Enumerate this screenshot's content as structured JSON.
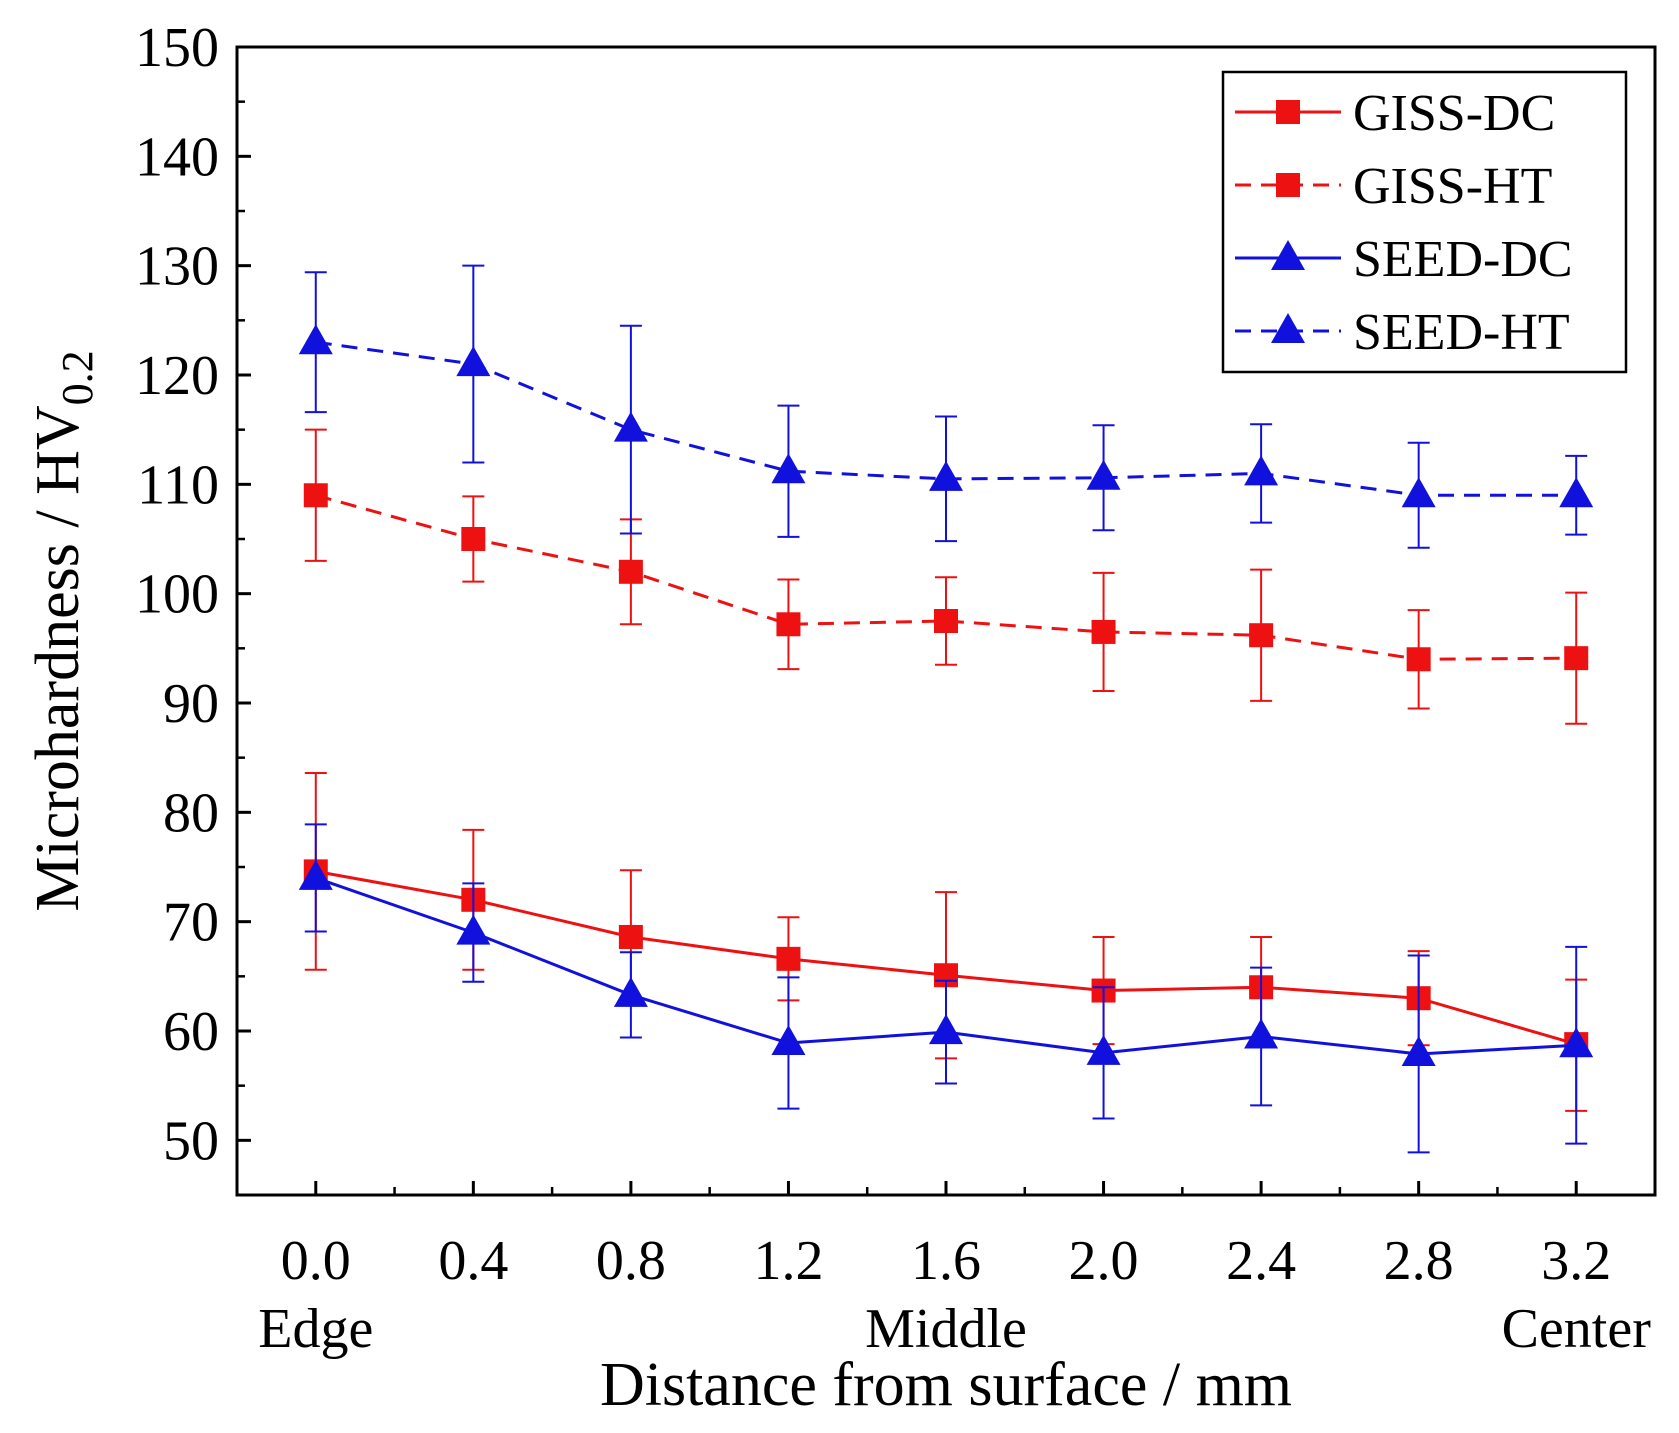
{
  "chart_data": {
    "type": "line",
    "title": "",
    "xlabel": "Distance from surface / mm",
    "ylabel": "Microhardness / HV",
    "ylabel_subscript": "0.2",
    "x": [
      0.0,
      0.4,
      0.8,
      1.2,
      1.6,
      2.0,
      2.4,
      2.8,
      3.2
    ],
    "x_tick_labels": [
      "0.0",
      "0.4",
      "0.8",
      "1.2",
      "1.6",
      "2.0",
      "2.4",
      "2.8",
      "3.2"
    ],
    "x_region_labels": [
      {
        "at": 0.0,
        "text": "Edge"
      },
      {
        "at": 1.6,
        "text": "Middle"
      },
      {
        "at": 3.2,
        "text": "Center"
      }
    ],
    "xlim": [
      -0.2,
      3.4
    ],
    "ylim": [
      45,
      150
    ],
    "y_ticks": [
      50,
      60,
      70,
      80,
      90,
      100,
      110,
      120,
      130,
      140,
      150
    ],
    "legend_position": "top-right",
    "series": [
      {
        "name": "GISS-DC",
        "color": "#ee1111",
        "dash": "solid",
        "marker": "square",
        "values": [
          74.6,
          72.0,
          68.6,
          66.6,
          65.1,
          63.7,
          64.0,
          63.0,
          58.8
        ],
        "err_plus": [
          9.0,
          6.4,
          6.1,
          3.8,
          7.6,
          4.9,
          4.6,
          4.3,
          5.9
        ],
        "err_minus": [
          9.0,
          6.4,
          6.1,
          3.8,
          7.6,
          4.9,
          4.6,
          4.3,
          6.1
        ]
      },
      {
        "name": "GISS-HT",
        "color": "#ee1111",
        "dash": "dashed",
        "marker": "square",
        "values": [
          109.0,
          105.0,
          102.0,
          97.2,
          97.5,
          96.5,
          96.2,
          94.0,
          94.1
        ],
        "err_plus": [
          6.0,
          3.9,
          4.8,
          4.1,
          4.0,
          5.4,
          6.0,
          4.5,
          6.0
        ],
        "err_minus": [
          6.0,
          3.9,
          4.8,
          4.1,
          4.0,
          5.4,
          6.0,
          4.5,
          6.0
        ]
      },
      {
        "name": "SEED-DC",
        "color": "#1111dd",
        "dash": "solid",
        "marker": "triangle",
        "values": [
          74.0,
          69.0,
          63.3,
          58.9,
          59.9,
          58.0,
          59.5,
          57.9,
          58.7
        ],
        "err_plus": [
          4.9,
          4.5,
          3.9,
          6.0,
          4.7,
          6.0,
          6.3,
          9.0,
          9.0
        ],
        "err_minus": [
          4.9,
          4.5,
          3.9,
          6.0,
          4.7,
          6.0,
          6.3,
          9.0,
          9.0
        ]
      },
      {
        "name": "SEED-HT",
        "color": "#1111dd",
        "dash": "dashed",
        "marker": "triangle",
        "values": [
          123.0,
          121.0,
          115.0,
          111.2,
          110.5,
          110.6,
          111.0,
          109.0,
          109.0
        ],
        "err_plus": [
          6.4,
          9.0,
          9.5,
          6.0,
          5.7,
          4.8,
          4.5,
          4.8,
          3.6
        ],
        "err_minus": [
          6.4,
          9.0,
          9.5,
          6.0,
          5.7,
          4.8,
          4.5,
          4.8,
          3.6
        ]
      }
    ]
  }
}
